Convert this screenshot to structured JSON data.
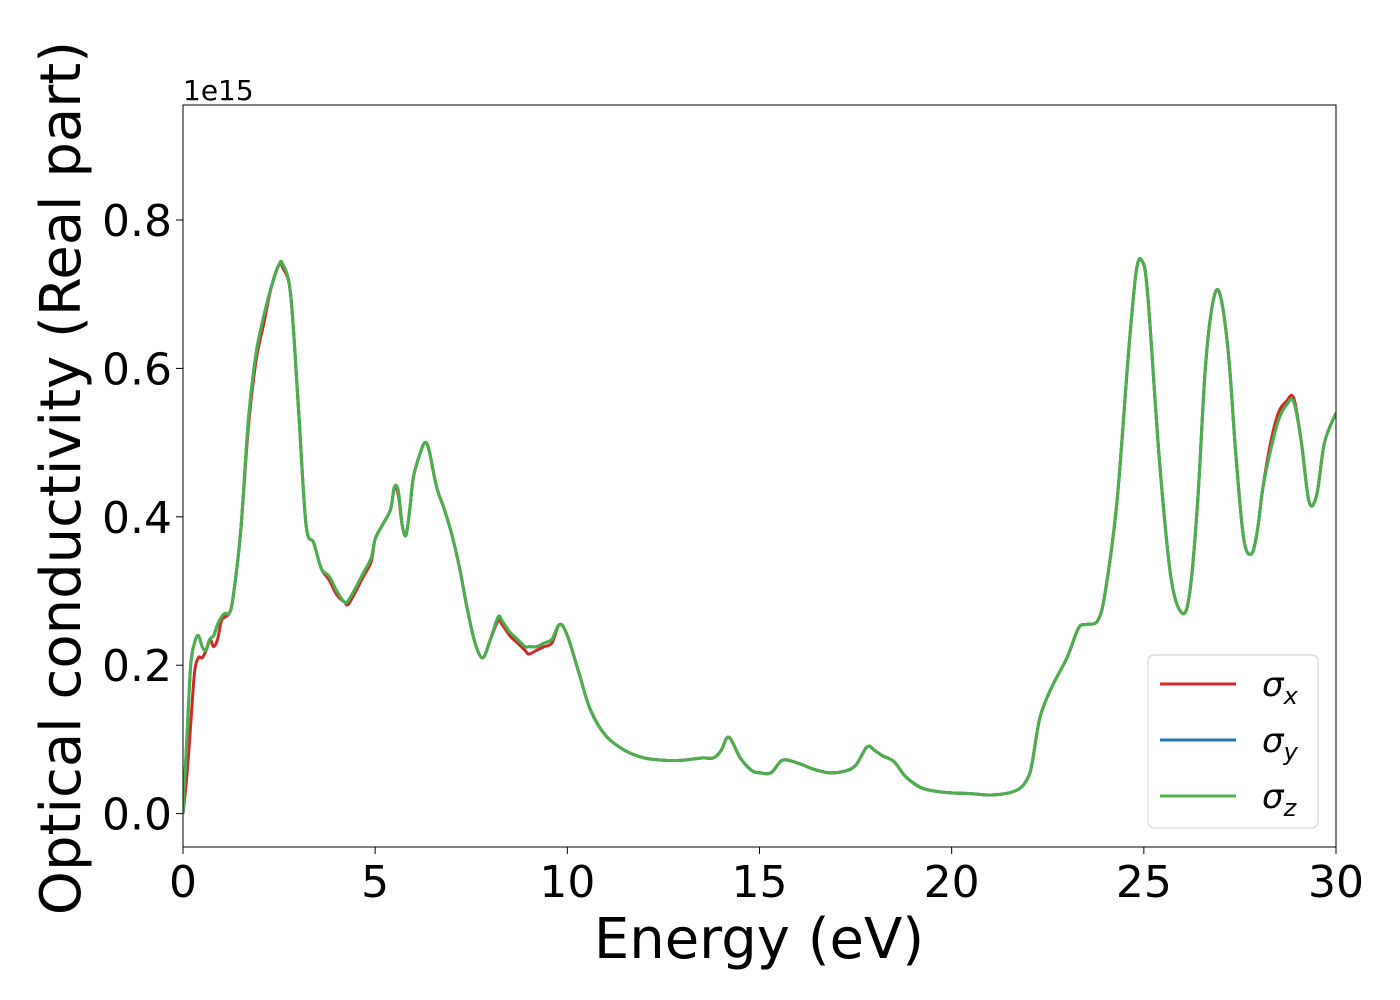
{
  "chart_data": {
    "type": "line",
    "title": "",
    "xlabel": "Energy (eV)",
    "ylabel": "Optical conductivity (Real part)",
    "offset_text": "1e15",
    "xlim": [
      0,
      30
    ],
    "ylim": [
      -0.045,
      0.955
    ],
    "x_ticks": [
      0,
      5,
      10,
      15,
      20,
      25,
      30
    ],
    "y_ticks": [
      0.0,
      0.2,
      0.4,
      0.6,
      0.8
    ],
    "x_tick_labels": [
      "0",
      "5",
      "10",
      "15",
      "20",
      "25",
      "30"
    ],
    "y_tick_labels": [
      "0.0",
      "0.2",
      "0.4",
      "0.6",
      "0.8"
    ],
    "grid": false,
    "legend_position": "lower-right",
    "x": [
      0,
      0.1,
      0.2,
      0.3,
      0.4,
      0.5,
      0.6,
      0.7,
      0.8,
      0.9,
      1.0,
      1.1,
      1.2,
      1.3,
      1.5,
      1.7,
      1.9,
      2.1,
      2.3,
      2.5,
      2.6,
      2.8,
      3.0,
      3.2,
      3.4,
      3.6,
      3.8,
      4.0,
      4.2,
      4.3,
      4.5,
      4.7,
      4.9,
      5.0,
      5.2,
      5.4,
      5.5,
      5.6,
      5.7,
      5.8,
      5.9,
      6.0,
      6.2,
      6.3,
      6.4,
      6.6,
      6.8,
      7.0,
      7.2,
      7.4,
      7.6,
      7.8,
      8.0,
      8.2,
      8.3,
      8.5,
      8.7,
      8.9,
      9.0,
      9.2,
      9.4,
      9.6,
      9.8,
      10.0,
      10.3,
      10.6,
      11.0,
      11.5,
      12.0,
      12.5,
      13.0,
      13.5,
      13.8,
      14.0,
      14.2,
      14.5,
      14.8,
      15.0,
      15.3,
      15.6,
      16.0,
      16.4,
      16.8,
      17.2,
      17.5,
      17.8,
      18.0,
      18.2,
      18.5,
      18.8,
      19.2,
      19.6,
      20.0,
      20.5,
      21.0,
      21.5,
      21.8,
      22.0,
      22.1,
      22.3,
      22.6,
      23.0,
      23.3,
      23.5,
      23.8,
      24.0,
      24.3,
      24.6,
      24.8,
      24.95,
      25.1,
      25.4,
      25.7,
      26.0,
      26.2,
      26.4,
      26.6,
      26.8,
      26.98,
      27.2,
      27.4,
      27.6,
      27.8,
      27.95,
      28.1,
      28.3,
      28.5,
      28.7,
      28.9,
      29.1,
      29.3,
      29.5,
      29.7,
      30.0
    ],
    "series": [
      {
        "name": "σx",
        "color": "#d62728",
        "values": [
          0.0,
          0.05,
          0.12,
          0.19,
          0.21,
          0.21,
          0.22,
          0.235,
          0.225,
          0.235,
          0.26,
          0.265,
          0.27,
          0.29,
          0.38,
          0.52,
          0.61,
          0.66,
          0.71,
          0.74,
          0.735,
          0.7,
          0.55,
          0.39,
          0.365,
          0.33,
          0.315,
          0.295,
          0.285,
          0.282,
          0.3,
          0.32,
          0.34,
          0.37,
          0.39,
          0.41,
          0.44,
          0.43,
          0.39,
          0.375,
          0.41,
          0.455,
          0.49,
          0.5,
          0.49,
          0.44,
          0.41,
          0.375,
          0.33,
          0.275,
          0.23,
          0.21,
          0.235,
          0.26,
          0.255,
          0.24,
          0.23,
          0.22,
          0.215,
          0.22,
          0.225,
          0.23,
          0.255,
          0.24,
          0.19,
          0.14,
          0.105,
          0.085,
          0.075,
          0.072,
          0.072,
          0.075,
          0.075,
          0.085,
          0.103,
          0.075,
          0.058,
          0.055,
          0.055,
          0.072,
          0.068,
          0.06,
          0.055,
          0.057,
          0.065,
          0.09,
          0.085,
          0.078,
          0.07,
          0.05,
          0.035,
          0.03,
          0.028,
          0.027,
          0.025,
          0.028,
          0.035,
          0.05,
          0.07,
          0.13,
          0.17,
          0.21,
          0.25,
          0.255,
          0.26,
          0.3,
          0.42,
          0.62,
          0.73,
          0.745,
          0.7,
          0.48,
          0.32,
          0.27,
          0.3,
          0.42,
          0.6,
          0.69,
          0.7,
          0.62,
          0.48,
          0.37,
          0.35,
          0.38,
          0.44,
          0.5,
          0.54,
          0.555,
          0.56,
          0.5,
          0.42,
          0.43,
          0.5,
          0.54
        ]
      },
      {
        "name": "σy",
        "color": "#1f77b4",
        "values": [
          0.0,
          0.1,
          0.2,
          0.23,
          0.24,
          0.225,
          0.22,
          0.235,
          0.24,
          0.255,
          0.265,
          0.27,
          0.27,
          0.29,
          0.38,
          0.53,
          0.62,
          0.67,
          0.71,
          0.74,
          0.74,
          0.7,
          0.55,
          0.39,
          0.365,
          0.33,
          0.32,
          0.3,
          0.285,
          0.287,
          0.305,
          0.325,
          0.345,
          0.37,
          0.39,
          0.41,
          0.44,
          0.435,
          0.39,
          0.375,
          0.41,
          0.455,
          0.49,
          0.5,
          0.49,
          0.44,
          0.41,
          0.375,
          0.33,
          0.275,
          0.23,
          0.21,
          0.235,
          0.265,
          0.26,
          0.245,
          0.235,
          0.225,
          0.225,
          0.225,
          0.23,
          0.235,
          0.255,
          0.24,
          0.19,
          0.14,
          0.105,
          0.085,
          0.075,
          0.072,
          0.072,
          0.075,
          0.075,
          0.085,
          0.103,
          0.075,
          0.058,
          0.055,
          0.055,
          0.072,
          0.068,
          0.06,
          0.055,
          0.057,
          0.065,
          0.09,
          0.085,
          0.078,
          0.07,
          0.05,
          0.035,
          0.03,
          0.028,
          0.027,
          0.025,
          0.028,
          0.035,
          0.05,
          0.07,
          0.13,
          0.17,
          0.21,
          0.25,
          0.255,
          0.26,
          0.3,
          0.42,
          0.62,
          0.73,
          0.745,
          0.7,
          0.48,
          0.32,
          0.27,
          0.3,
          0.42,
          0.6,
          0.69,
          0.7,
          0.62,
          0.48,
          0.37,
          0.35,
          0.38,
          0.44,
          0.49,
          0.53,
          0.55,
          0.555,
          0.5,
          0.42,
          0.43,
          0.5,
          0.54
        ]
      },
      {
        "name": "σz",
        "color": "#4daf4a",
        "values": [
          0.0,
          0.1,
          0.2,
          0.23,
          0.24,
          0.225,
          0.22,
          0.235,
          0.24,
          0.255,
          0.265,
          0.27,
          0.27,
          0.29,
          0.38,
          0.53,
          0.62,
          0.67,
          0.71,
          0.74,
          0.74,
          0.7,
          0.55,
          0.39,
          0.365,
          0.33,
          0.32,
          0.3,
          0.285,
          0.287,
          0.305,
          0.325,
          0.345,
          0.37,
          0.39,
          0.41,
          0.44,
          0.435,
          0.39,
          0.375,
          0.41,
          0.455,
          0.49,
          0.5,
          0.49,
          0.44,
          0.41,
          0.375,
          0.33,
          0.275,
          0.23,
          0.21,
          0.235,
          0.265,
          0.26,
          0.245,
          0.235,
          0.225,
          0.225,
          0.225,
          0.23,
          0.235,
          0.255,
          0.24,
          0.19,
          0.14,
          0.105,
          0.085,
          0.075,
          0.072,
          0.072,
          0.075,
          0.075,
          0.085,
          0.103,
          0.075,
          0.058,
          0.055,
          0.055,
          0.072,
          0.068,
          0.06,
          0.055,
          0.057,
          0.065,
          0.09,
          0.085,
          0.078,
          0.07,
          0.05,
          0.035,
          0.03,
          0.028,
          0.027,
          0.025,
          0.028,
          0.035,
          0.05,
          0.07,
          0.13,
          0.17,
          0.21,
          0.25,
          0.255,
          0.26,
          0.3,
          0.42,
          0.62,
          0.73,
          0.745,
          0.7,
          0.48,
          0.32,
          0.27,
          0.3,
          0.42,
          0.6,
          0.69,
          0.7,
          0.62,
          0.48,
          0.37,
          0.35,
          0.38,
          0.44,
          0.49,
          0.53,
          0.55,
          0.555,
          0.5,
          0.42,
          0.43,
          0.5,
          0.54
        ]
      }
    ]
  }
}
